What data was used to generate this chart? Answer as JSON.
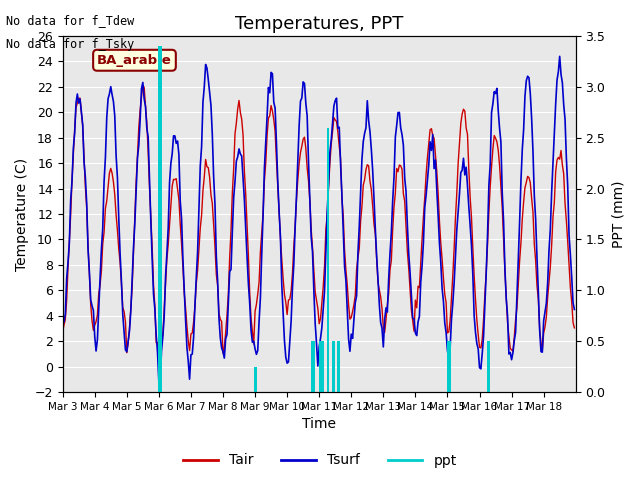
{
  "title": "Temperatures, PPT",
  "xlabel": "Time",
  "ylabel_left": "Temperature (C)",
  "ylabel_right": "PPT (mm)",
  "annotation_lines": [
    "No data for f_Tdew",
    "No data for f_Tsky"
  ],
  "site_label": "BA_arable",
  "ylim_left": [
    -2,
    26
  ],
  "ylim_right": [
    0.0,
    3.5
  ],
  "yticks_left": [
    -2,
    0,
    2,
    4,
    6,
    8,
    10,
    12,
    14,
    16,
    18,
    20,
    22,
    24,
    26
  ],
  "yticks_right": [
    0.0,
    0.5,
    1.0,
    1.5,
    2.0,
    2.5,
    3.0,
    3.5
  ],
  "xtick_positions": [
    0,
    1,
    2,
    3,
    4,
    5,
    6,
    7,
    8,
    9,
    10,
    11,
    12,
    13,
    14,
    15
  ],
  "xtick_labels": [
    "Mar 3",
    "Mar 4",
    "Mar 5",
    "Mar 6",
    "Mar 7",
    "Mar 8",
    "Mar 9",
    "Mar 10",
    "Mar 11",
    "Mar 12",
    "Mar 13",
    "Mar 14",
    "Mar 15",
    "Mar 16",
    "Mar 17",
    "Mar 18"
  ],
  "color_tair": "#cc0000",
  "color_tsurf": "#0000cc",
  "color_ppt": "#00cccc",
  "bg_color": "#e8e8e8",
  "legend_entries": [
    "Tair",
    "Tsurf",
    "ppt"
  ],
  "title_fontsize": 13,
  "label_fontsize": 10,
  "tick_fontsize": 9,
  "n_days": 16,
  "hours_per_day": 24
}
